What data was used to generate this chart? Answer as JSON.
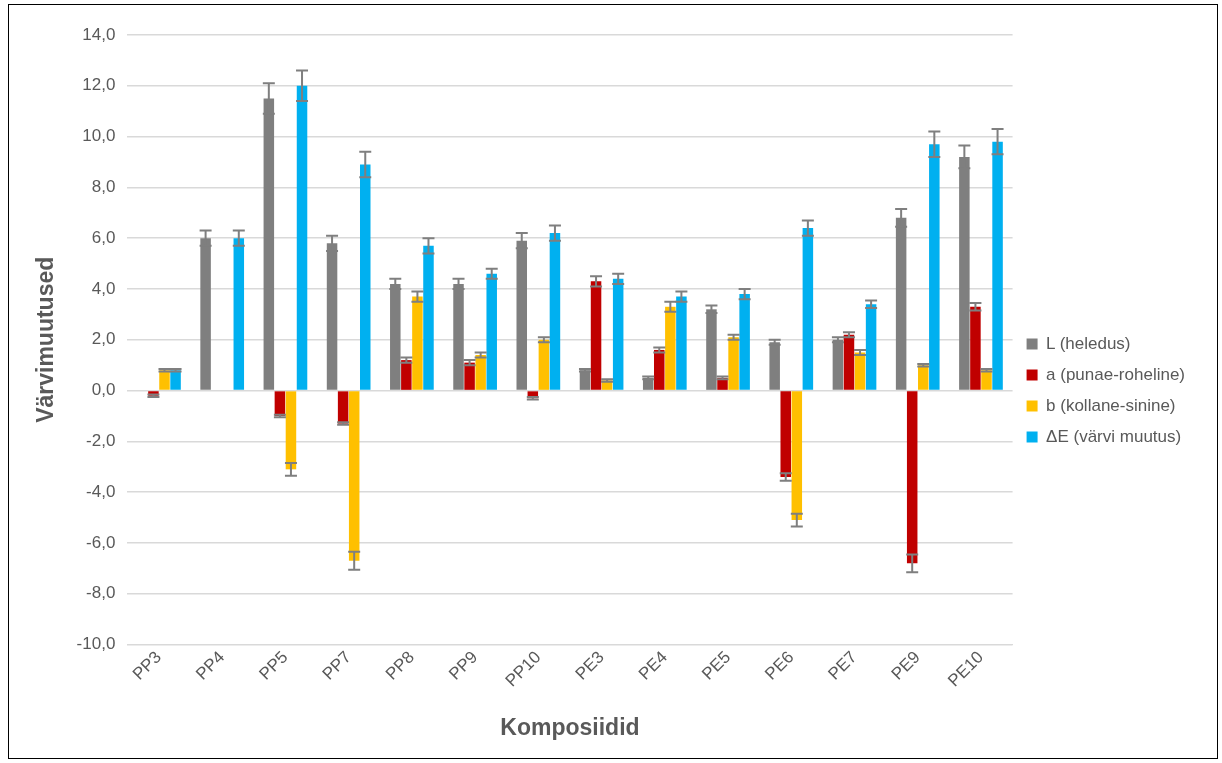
{
  "chart_data": {
    "type": "bar",
    "xlabel": "Komposiidid",
    "ylabel": "Värvimuutused",
    "categories": [
      "PP3",
      "PP4",
      "PP5",
      "PP7",
      "PP8",
      "PP9",
      "PP10",
      "PE3",
      "PE4",
      "PE5",
      "PE6",
      "PE7",
      "PE9",
      "PE10"
    ],
    "series": [
      {
        "name": "L (heledus)",
        "color": "#7f7f7f",
        "values": [
          0,
          6.0,
          11.5,
          5.8,
          4.2,
          4.2,
          5.9,
          0.8,
          0.5,
          3.2,
          1.9,
          2.0,
          6.8,
          9.2
        ],
        "errors": [
          null,
          0.3,
          0.6,
          0.3,
          0.2,
          0.2,
          0.3,
          0.05,
          0.05,
          0.15,
          0.1,
          0.1,
          0.35,
          0.45
        ]
      },
      {
        "name": "a (punae-roheline)",
        "color": "#c00000",
        "values": [
          -0.2,
          0,
          -1.0,
          -1.3,
          1.2,
          1.1,
          -0.3,
          4.3,
          1.6,
          0.5,
          -3.4,
          2.2,
          -6.8,
          3.3
        ],
        "errors": [
          0.05,
          null,
          0.05,
          0.05,
          0.1,
          0.1,
          0.05,
          0.2,
          0.1,
          0.05,
          0.15,
          0.1,
          0.35,
          0.15
        ]
      },
      {
        "name": "b (kollane-sinine)",
        "color": "#ffc000",
        "values": [
          0.8,
          0,
          -3.1,
          -6.7,
          3.7,
          1.4,
          2.0,
          0.4,
          3.3,
          2.1,
          -5.1,
          1.5,
          1.0,
          0.8
        ],
        "errors": [
          0.05,
          null,
          0.25,
          0.35,
          0.2,
          0.1,
          0.1,
          0.05,
          0.2,
          0.1,
          0.25,
          0.1,
          0.05,
          0.05
        ]
      },
      {
        "name": "ΔE (värvi muutus)",
        "color": "#00b0f0",
        "values": [
          0.8,
          6.0,
          12.0,
          8.9,
          5.7,
          4.6,
          6.2,
          4.4,
          3.7,
          3.8,
          6.4,
          3.4,
          9.7,
          9.8
        ],
        "errors": [
          0.05,
          0.3,
          0.6,
          0.5,
          0.3,
          0.2,
          0.3,
          0.2,
          0.2,
          0.2,
          0.3,
          0.15,
          0.5,
          0.5
        ]
      }
    ],
    "ylim": [
      -10,
      14
    ],
    "yticks": [
      {
        "value": -10,
        "label": "-10,0"
      },
      {
        "value": -8,
        "label": "-8,0"
      },
      {
        "value": -6,
        "label": "-6,0"
      },
      {
        "value": -4,
        "label": "-4,0"
      },
      {
        "value": -2,
        "label": "-2,0"
      },
      {
        "value": 0,
        "label": "0,0"
      },
      {
        "value": 2,
        "label": "2,0"
      },
      {
        "value": 4,
        "label": "4,0"
      },
      {
        "value": 6,
        "label": "6,0"
      },
      {
        "value": 8,
        "label": "8,0"
      },
      {
        "value": 10,
        "label": "10,0"
      },
      {
        "value": 12,
        "label": "12,0"
      },
      {
        "value": 14,
        "label": "14,0"
      }
    ],
    "grid": "y",
    "legend": "right"
  }
}
